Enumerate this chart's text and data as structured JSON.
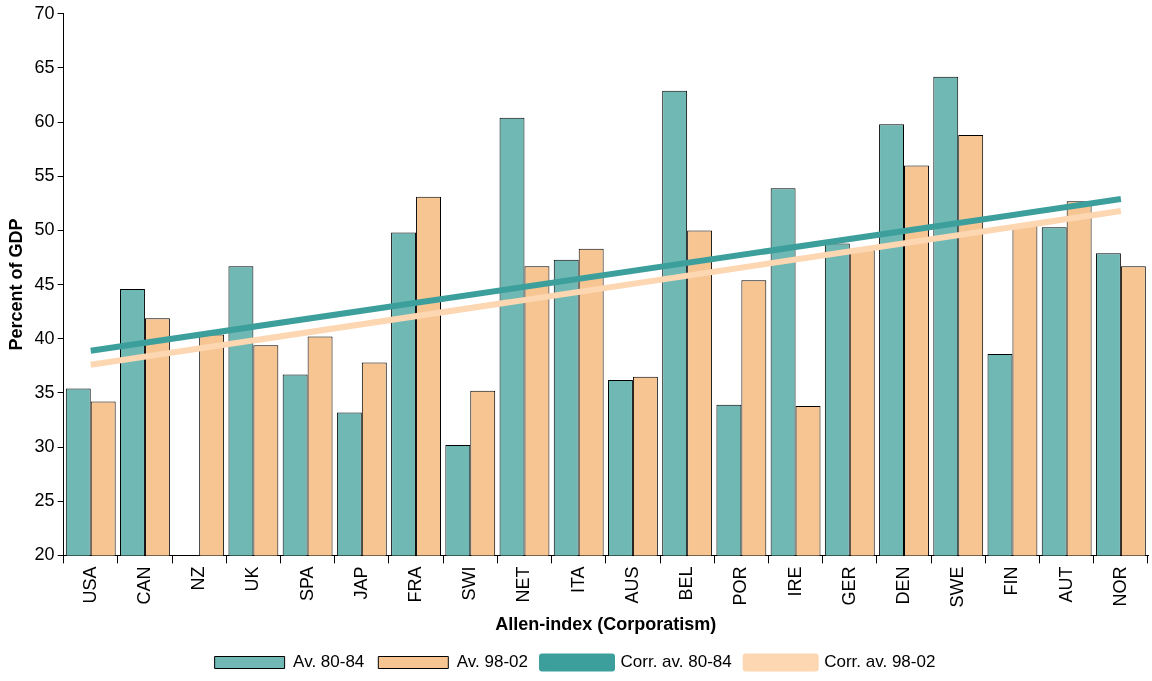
{
  "chart_data": {
    "type": "bar",
    "xlabel": "Allen-index (Corporatism)",
    "ylabel": "Percent of GDP",
    "categories": [
      "USA",
      "CAN",
      "NZ",
      "UK",
      "SPA",
      "JAP",
      "FRA",
      "SWI",
      "NET",
      "ITA",
      "AUS",
      "BEL",
      "POR",
      "IRE",
      "GER",
      "DEN",
      "SWE",
      "FIN",
      "AUT",
      "NOR"
    ],
    "series": [
      {
        "name": "Av. 80-84",
        "color": "#6fb8b4",
        "values": [
          35.4,
          44.6,
          null,
          46.7,
          36.7,
          33.2,
          49.8,
          30.2,
          60.4,
          47.3,
          36.2,
          62.9,
          33.9,
          53.9,
          48.8,
          59.8,
          64.2,
          38.6,
          50.3,
          47.9
        ]
      },
      {
        "name": "Av. 98-02",
        "color": "#f6c592",
        "values": [
          34.2,
          41.9,
          40.4,
          39.4,
          40.2,
          37.8,
          53.1,
          35.2,
          46.7,
          48.3,
          36.5,
          50.0,
          45.4,
          33.8,
          48.2,
          56.0,
          58.8,
          50.5,
          52.7,
          46.7
        ]
      },
      {
        "name": "Corr. av. 80-84",
        "type": "line",
        "color": "#3d9f9c",
        "x": [
          "USA",
          "NOR"
        ],
        "values": [
          38.9,
          52.9
        ]
      },
      {
        "name": "Corr. av. 98-02",
        "type": "line",
        "color": "#fdd6b2",
        "x": [
          "USA",
          "NOR"
        ],
        "values": [
          37.6,
          51.8
        ]
      }
    ],
    "ylim": [
      20,
      70
    ],
    "yticks": [
      20,
      25,
      30,
      35,
      40,
      45,
      50,
      55,
      60,
      65,
      70
    ],
    "grid": false,
    "legend": "bottom",
    "marker": "none"
  }
}
